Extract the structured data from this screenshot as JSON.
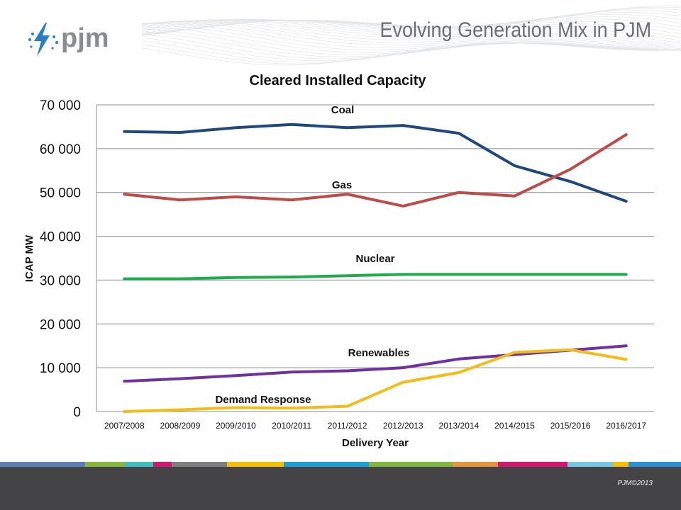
{
  "slide": {
    "title": "Evolving Generation Mix in PJM",
    "logo_text": "pjm",
    "copyright": "PJM©2013"
  },
  "colors": {
    "Coal": "#1f497d",
    "Gas": "#be4b48",
    "Nuclear": "#1eab4b",
    "Renewables": "#7030a0",
    "Demand Response": "#f2bd19",
    "footer": "#444446",
    "logo": "#2a7fc4",
    "grid": "#8c8c8c"
  },
  "stripe_colors": [
    "#5c7fb5",
    "#86b83d",
    "#3dbfc4",
    "#d1196f",
    "#7f7f7f",
    "#f5c000",
    "#1ba0d6",
    "#7fb83d",
    "#e8923a",
    "#d1196f",
    "#78c8e3",
    "#f5c000",
    "#2a8fd6"
  ],
  "chart_data": {
    "type": "line",
    "title": "Cleared Installed Capacity",
    "xlabel": "Delivery Year",
    "ylabel": "ICAP MW",
    "categories": [
      "2007/2008",
      "2008/2009",
      "2009/2010",
      "2010/2011",
      "2011/2012",
      "2012/2013",
      "2013/2014",
      "2014/2015",
      "2015/2016",
      "2016/2017"
    ],
    "ylim": [
      0,
      70000
    ],
    "yticks": [
      0,
      10000,
      20000,
      30000,
      40000,
      50000,
      60000,
      70000
    ],
    "ytick_labels": [
      "0",
      "10 000",
      "20 000",
      "30 000",
      "40 000",
      "50 000",
      "60 000",
      "70 000"
    ],
    "grid": true,
    "legend": "inline labels",
    "series": [
      {
        "name": "Coal",
        "values": [
          63900,
          63700,
          64800,
          65500,
          64800,
          65300,
          63500,
          56100,
          52500,
          48000
        ]
      },
      {
        "name": "Gas",
        "values": [
          49600,
          48300,
          49000,
          48300,
          49600,
          46900,
          50000,
          49200,
          55300,
          63200
        ]
      },
      {
        "name": "Nuclear",
        "values": [
          30300,
          30300,
          30600,
          30700,
          31000,
          31300,
          31300,
          31300,
          31300,
          31300
        ]
      },
      {
        "name": "Renewables",
        "values": [
          6900,
          7500,
          8200,
          9000,
          9300,
          10000,
          12000,
          13000,
          14000,
          15000
        ]
      },
      {
        "name": "Demand Response",
        "values": [
          0,
          400,
          900,
          800,
          1200,
          6700,
          8900,
          13500,
          14100,
          11900
        ]
      }
    ]
  }
}
